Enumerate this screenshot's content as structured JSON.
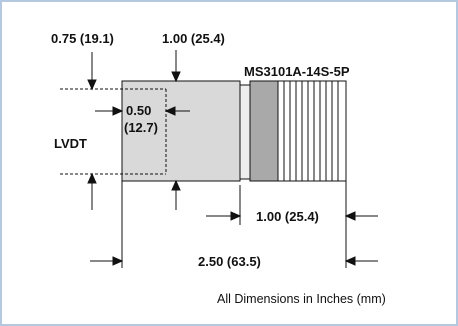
{
  "labels": {
    "top_left_dim": "0.75 (19.1)",
    "top_mid_dim": "1.00 (25.4)",
    "connector": "MS3101A-14S-5P",
    "inner_dim_in": "0.50",
    "inner_dim_mm": "(12.7)",
    "side_label": "LVDT",
    "connector_length": "1.00 (25.4)",
    "overall_length": "2.50 (63.5)",
    "units_note": "All Dimensions in Inches (mm)"
  },
  "colors": {
    "frame_border": "#b4c9e0",
    "body_fill": "#d9d9d9",
    "connector_fill": "#a9a9a9",
    "line": "#111111"
  }
}
